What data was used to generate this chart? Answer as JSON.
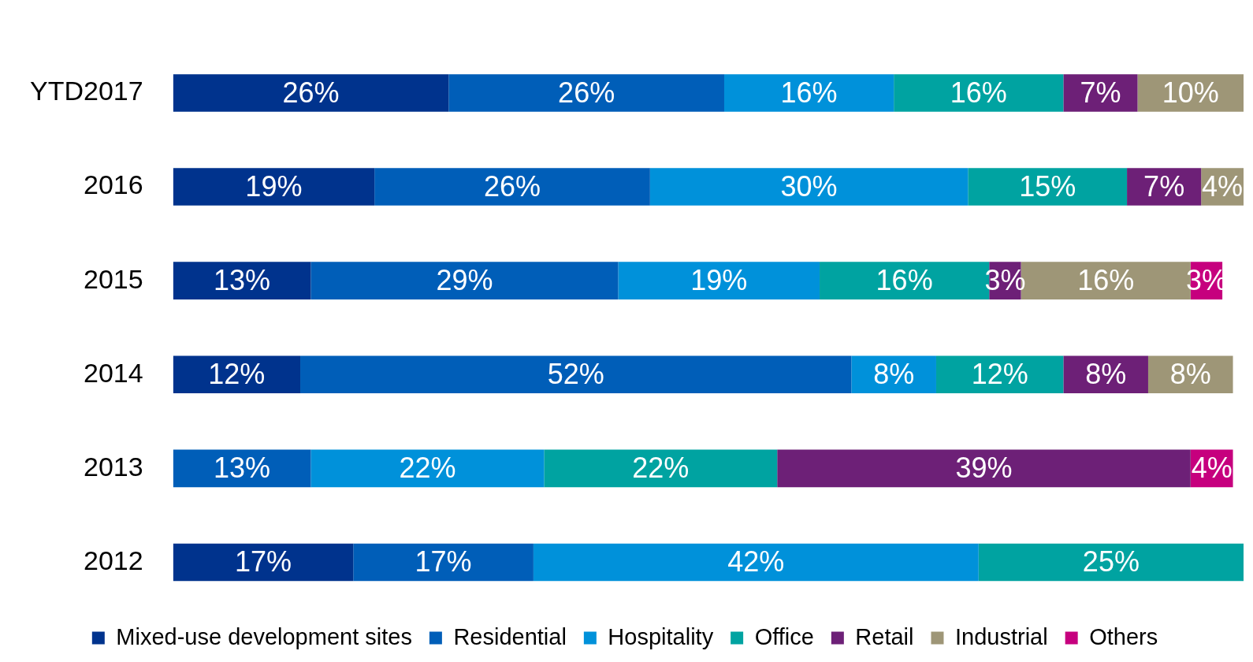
{
  "chart_data": {
    "type": "bar",
    "orientation": "horizontal",
    "stacked": true,
    "categories": [
      "YTD2017",
      "2016",
      "2015",
      "2014",
      "2013",
      "2012"
    ],
    "series": [
      {
        "name": "Mixed-use development sites",
        "color": "#00338d",
        "values": [
          26,
          19,
          13,
          12,
          null,
          17
        ],
        "value_labels": [
          "26%",
          "19%",
          "13%",
          "12%",
          null,
          "17%"
        ]
      },
      {
        "name": "Residential",
        "color": "#005eb8",
        "values": [
          26,
          26,
          29,
          52,
          13,
          17
        ],
        "value_labels": [
          "26%",
          "26%",
          "29%",
          "52%",
          "13%",
          "17%"
        ]
      },
      {
        "name": "Hospitality",
        "color": "#0091da",
        "values": [
          16,
          30,
          19,
          8,
          22,
          42
        ],
        "value_labels": [
          "16%",
          "30%",
          "19%",
          "8%",
          "22%",
          "42%"
        ]
      },
      {
        "name": "Office",
        "color": "#00a3a1",
        "values": [
          16,
          15,
          16,
          12,
          22,
          25
        ],
        "value_labels": [
          "16%",
          "15%",
          "16%",
          "12%",
          "22%",
          "25%"
        ]
      },
      {
        "name": "Retail",
        "color": "#6d2077",
        "values": [
          7,
          7,
          3,
          8,
          39,
          null
        ],
        "value_labels": [
          "7%",
          "7%",
          "3%",
          "8%",
          "39%",
          null
        ]
      },
      {
        "name": "Industrial",
        "color": "#9e9677",
        "values": [
          10,
          4,
          16,
          8,
          null,
          null
        ],
        "value_labels": [
          "10%",
          "4%",
          "16%",
          "8%",
          null,
          null
        ]
      },
      {
        "name": "Others",
        "color": "#c6007e",
        "values": [
          null,
          null,
          3,
          null,
          4,
          null
        ],
        "value_labels": [
          null,
          null,
          "3%",
          null,
          "4%",
          null
        ]
      }
    ],
    "tick_labels": "y",
    "grid": false,
    "legend": "bottom"
  }
}
